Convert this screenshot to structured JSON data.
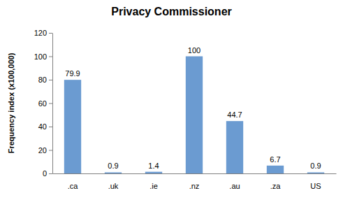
{
  "chart_data": {
    "type": "bar",
    "title": "Privacy Commissioner",
    "ylabel": "Frequency index (x100,000)",
    "categories": [
      ".ca",
      ".uk",
      ".ie",
      ".nz",
      ".au",
      ".za",
      "US"
    ],
    "values": [
      79.9,
      0.9,
      1.4,
      100,
      44.7,
      6.7,
      0.9
    ],
    "color": "#6b9bd1",
    "ylim": [
      0,
      120
    ],
    "yticks": [
      0,
      20,
      40,
      60,
      80,
      100,
      120
    ],
    "grid": false,
    "data_labels": true
  }
}
